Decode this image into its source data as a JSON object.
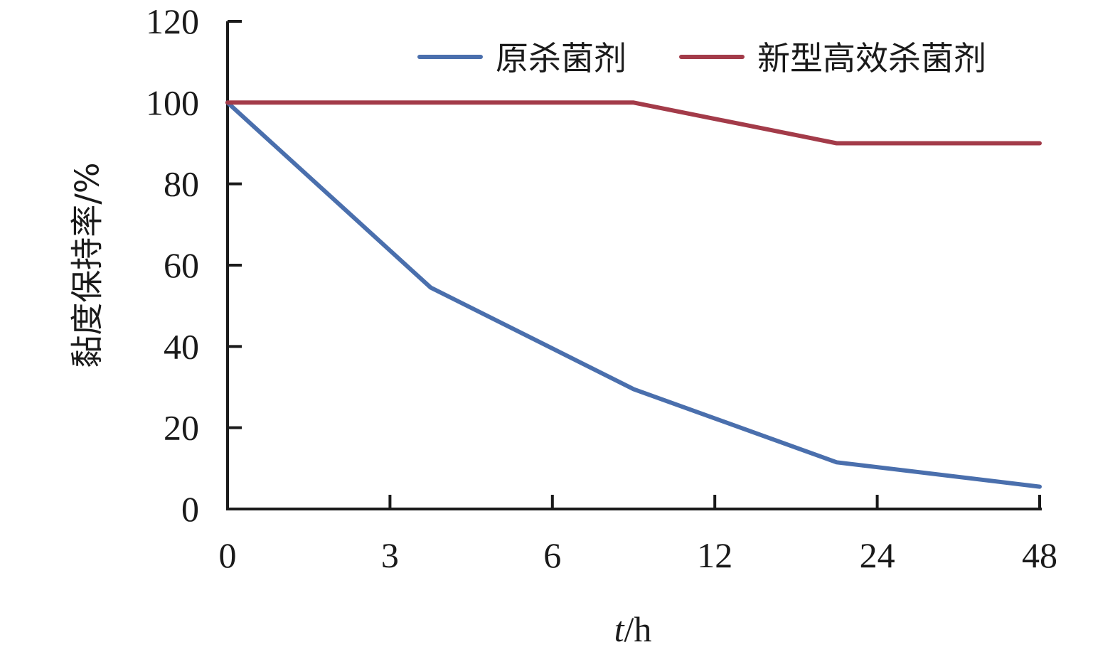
{
  "chart_data": {
    "type": "line",
    "categories": [
      "0",
      "3",
      "6",
      "12",
      "24",
      "48"
    ],
    "ylim": [
      0,
      120
    ],
    "yticks": [
      "0",
      "20",
      "40",
      "60",
      "80",
      "100",
      "120"
    ],
    "ylabel": "黏度保持率/%",
    "xlabel_var": "t",
    "xlabel_unit": "/h",
    "grid": false,
    "legend_position": "top-right",
    "series": [
      {
        "name": "原杀菌剂",
        "color": "#4a6fad",
        "points": [
          {
            "x": 0,
            "y": 100
          },
          {
            "x": 1.25,
            "y": 54.5
          },
          {
            "x": 2.5,
            "y": 29.5
          },
          {
            "x": 3.75,
            "y": 11.5
          },
          {
            "x": 5,
            "y": 5.5
          }
        ]
      },
      {
        "name": "新型高效杀菌剂",
        "color": "#a33b49",
        "points": [
          {
            "x": 0,
            "y": 100
          },
          {
            "x": 2.5,
            "y": 100
          },
          {
            "x": 3.75,
            "y": 90
          },
          {
            "x": 5,
            "y": 90
          }
        ]
      }
    ]
  }
}
